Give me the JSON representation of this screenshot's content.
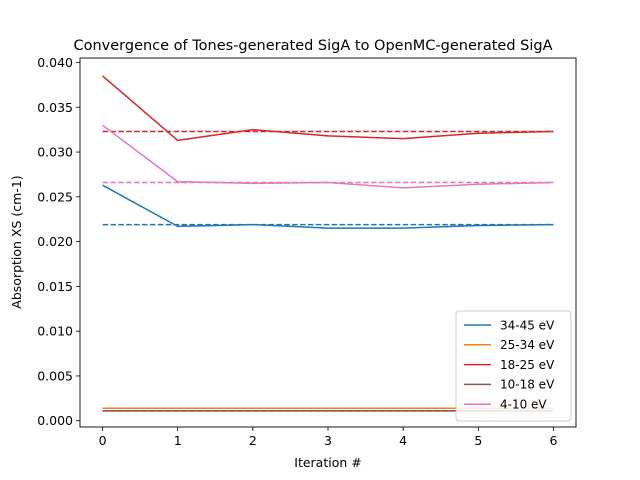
{
  "chart_data": {
    "type": "line",
    "title": "Convergence of Tones-generated SigA to OpenMC-generated SigA",
    "xlabel": "Iteration #",
    "ylabel": "Absorption XS (cm-1)",
    "x": [
      0,
      1,
      2,
      3,
      4,
      5,
      6
    ],
    "xlim": [
      -0.3,
      6.3
    ],
    "ylim": [
      -0.0007,
      0.0405
    ],
    "xticks": [
      0,
      1,
      2,
      3,
      4,
      5,
      6
    ],
    "xtick_labels": [
      "0",
      "1",
      "2",
      "3",
      "4",
      "5",
      "6"
    ],
    "yticks": [
      0.0,
      0.005,
      0.01,
      0.015,
      0.02,
      0.025,
      0.03,
      0.035,
      0.04
    ],
    "ytick_labels": [
      "0.000",
      "0.005",
      "0.010",
      "0.015",
      "0.020",
      "0.025",
      "0.030",
      "0.035",
      "0.040"
    ],
    "grid": false,
    "legend_position": "lower-right",
    "series": [
      {
        "name": "34-45 eV",
        "color": "#1f77b4",
        "values": [
          0.0263,
          0.0217,
          0.0219,
          0.0215,
          0.0215,
          0.0218,
          0.0219
        ],
        "reference": 0.0219
      },
      {
        "name": "25-34 eV",
        "color": "#ff7f0e",
        "values": [
          0.0014,
          0.0014,
          0.0014,
          0.0014,
          0.0014,
          0.0014,
          0.0014
        ],
        "reference": 0.0014
      },
      {
        "name": "18-25 eV",
        "color": "#d62728",
        "values": [
          0.0385,
          0.0313,
          0.0325,
          0.0318,
          0.0315,
          0.0321,
          0.0323
        ],
        "reference": 0.0323
      },
      {
        "name": "10-18 eV",
        "color": "#8c564b",
        "values": [
          0.0011,
          0.0011,
          0.0011,
          0.0011,
          0.0011,
          0.0011,
          0.0011
        ],
        "reference": 0.0011
      },
      {
        "name": "4-10 eV",
        "color": "#e377c2",
        "values": [
          0.033,
          0.0267,
          0.0265,
          0.0266,
          0.026,
          0.0264,
          0.0266
        ],
        "reference": 0.0266
      }
    ]
  }
}
